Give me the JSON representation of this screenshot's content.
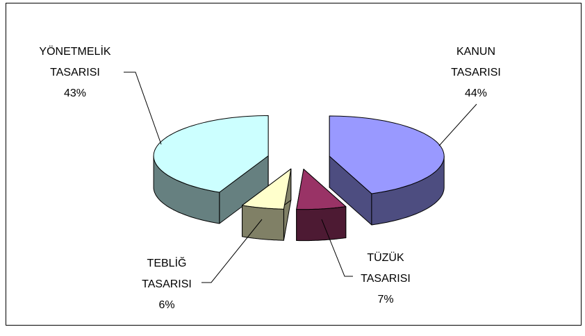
{
  "chart_data": {
    "type": "pie3d",
    "categories": [
      "KANUN TASARISI",
      "TÜZÜK TASARISI",
      "TEBLİĞ TASARISI",
      "YÖNETMELİK TASARISI"
    ],
    "values": [
      44,
      7,
      6,
      43
    ],
    "value_labels": [
      "44%",
      "7%",
      "6%",
      "43%"
    ],
    "colors": [
      "#9999ff",
      "#993366",
      "#ffffcc",
      "#ccffff"
    ]
  }
}
